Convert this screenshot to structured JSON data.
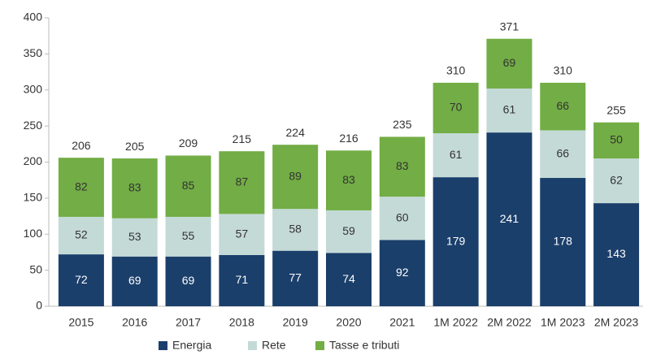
{
  "chart_data": {
    "type": "stacked_bar",
    "categories": [
      "2015",
      "2016",
      "2017",
      "2018",
      "2019",
      "2020",
      "2021",
      "1M 2022",
      "2M 2022",
      "1M 2023",
      "2M 2023"
    ],
    "series": [
      {
        "name": "Energia",
        "color": "#1b3f6b",
        "values": [
          72,
          69,
          69,
          71,
          77,
          74,
          92,
          179,
          241,
          178,
          143
        ]
      },
      {
        "name": "Rete",
        "color": "#c4dad7",
        "values": [
          52,
          53,
          55,
          57,
          58,
          59,
          60,
          61,
          61,
          66,
          62
        ]
      },
      {
        "name": "Tasse e tributi",
        "color": "#72ad45",
        "values": [
          82,
          83,
          85,
          87,
          89,
          83,
          83,
          70,
          69,
          66,
          50
        ]
      }
    ],
    "totals": [
      206,
      205,
      209,
      215,
      224,
      216,
      235,
      310,
      371,
      310,
      255
    ],
    "ylim": [
      0,
      400
    ],
    "yticks": [
      0,
      50,
      100,
      150,
      200,
      250,
      300,
      350,
      400
    ],
    "grid": false,
    "legend": "bottom"
  }
}
